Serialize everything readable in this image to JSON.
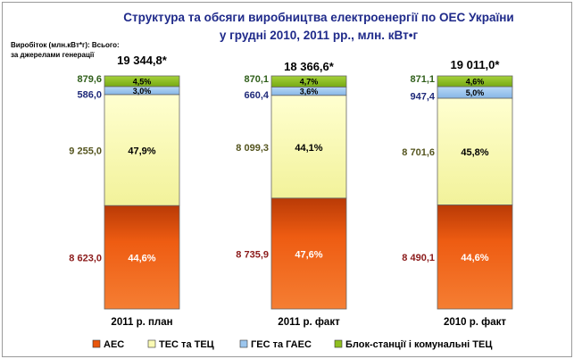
{
  "chart_data": {
    "type": "bar",
    "stacked": true,
    "percent_stacked": true,
    "title_lines": [
      "Структура та обсяги виробництва електроенергії по ОЕС України",
      "у грудні 2010, 2011 рр., млн. кВт•г"
    ],
    "side_note_lines": [
      "Виробіток (млн.кВт*г): Всього:",
      "за джерелами генерації"
    ],
    "categories": [
      "2011 р. план",
      "2011 р. факт",
      "2010 р. факт"
    ],
    "totals": [
      "19 344,8*",
      "18 366,6*",
      "19 011,0*"
    ],
    "series": [
      {
        "name": "АЕС",
        "color": "#e8560c",
        "values": [
          8623.0,
          8735.9,
          8490.1
        ],
        "value_labels": [
          "8 623,0",
          "8 735,9",
          "8 490,1"
        ],
        "percent_labels": [
          "44,6%",
          "47,6%",
          "44,6%"
        ],
        "label_color": "#8b1a1a"
      },
      {
        "name": "ТЕС та ТЕЦ",
        "color": "#fafab4",
        "values": [
          9255.0,
          8099.3,
          8701.6
        ],
        "value_labels": [
          "9 255,0",
          "8 099,3",
          "8 701,6"
        ],
        "percent_labels": [
          "47,9%",
          "44,1%",
          "45,8%"
        ],
        "label_color": "#55551f"
      },
      {
        "name": "ГЕС та ГАЕС",
        "color": "#9cc6ee",
        "values": [
          586.0,
          660.4,
          947.4
        ],
        "value_labels": [
          "586,0",
          "660,4",
          "947,4"
        ],
        "percent_labels": [
          "3,0%",
          "3,6%",
          "5,0%"
        ],
        "label_color": "#1f2a7a"
      },
      {
        "name": "Блок-станції і комунальні ТЕЦ",
        "color": "#8fbf1f",
        "values": [
          879.6,
          870.1,
          871.1
        ],
        "value_labels": [
          "879,6",
          "870,1",
          "871,1"
        ],
        "percent_labels": [
          "4,5%",
          "4,7%",
          "4,6%"
        ],
        "label_color": "#2f5e1a"
      }
    ],
    "legend_position": "bottom",
    "grid": false,
    "colors": {
      "title": "#1f2a8a",
      "text": "#000000"
    }
  }
}
